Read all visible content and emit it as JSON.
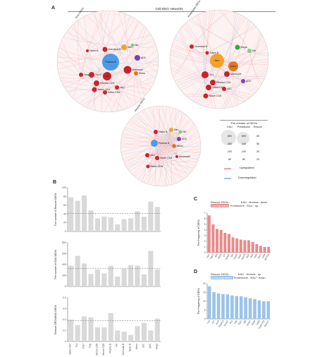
{
  "panelA": {
    "letter": "A",
    "title": "Cell-DEG networks",
    "networks": [
      {
        "key": "eau",
        "name": "EAU DEGs",
        "labels": [
          "Germinal B",
          "Naive B",
          "Plasma B",
          "Neu",
          "NK",
          "Mono",
          "Monocyte",
          "Mega",
          "pDC",
          "Effector CD4",
          "Naive CD4",
          "Naive CD8",
          "Th1",
          "Th17",
          "Treg",
          "cDC"
        ]
      },
      {
        "key": "pred",
        "name": "Prednisone DEGs",
        "labels": [
          "Germinal B",
          "Naive B",
          "Plasma B",
          "Neu",
          "NK",
          "Mono",
          "Monocyte",
          "Mega",
          "pDC",
          "Effector CD4",
          "Naive CD4",
          "Naive CD8",
          "Th1",
          "Th17",
          "Treg",
          "cDC"
        ]
      },
      {
        "key": "res",
        "name": "Rescue DEGs",
        "labels": [
          "Naive B",
          "Plasma B",
          "Neu",
          "NK",
          "Mono",
          "Monocyte",
          "pDC",
          "Naive CD4",
          "Naive CD8",
          "cDC"
        ]
      }
    ],
    "legend": {
      "title": "The number of DEGs",
      "columns": [
        "EAU",
        "Prednisone",
        "Rescue"
      ],
      "rows": [
        [
          "800",
          "600",
          "80"
        ],
        [
          "400",
          "440",
          "56"
        ],
        [
          "200",
          "240",
          "35"
        ],
        [
          "85",
          "80",
          "20"
        ]
      ],
      "up_label": "Upregulated",
      "down_label": "Downregulated",
      "up_color": "#f1a5a5",
      "down_color": "#9cc3e8"
    }
  },
  "panelB": {
    "letter": "B",
    "bar_color": "#d9d9d9",
    "categories": [
      "Naive CD4",
      "Th1",
      "Th17",
      "Treg",
      "Effector CD8",
      "Effector CD8",
      "Plasma B",
      "NK",
      "Germinal B",
      "Naive B",
      "Mono",
      "cDC",
      "pDC",
      "Mega"
    ],
    "chart_data": [
      {
        "type": "bar",
        "ylabel": "The number of Rescue DEGs",
        "ylim": [
          0,
          100
        ],
        "ticks": [
          "0",
          "20",
          "40",
          "60",
          "80",
          "100"
        ],
        "values": [
          78,
          70,
          82,
          48,
          30,
          34,
          32,
          16,
          28,
          30,
          46,
          34,
          68,
          56
        ],
        "ref": 41
      },
      {
        "type": "bar",
        "ylabel": "The number of EAU DEGs",
        "ylim": [
          0,
          800
        ],
        "ticks": [
          "0",
          "200",
          "400",
          "600",
          "800"
        ],
        "values": [
          380,
          560,
          420,
          230,
          310,
          240,
          380,
          180,
          320,
          390,
          380,
          220,
          650,
          310
        ],
        "ref": 325
      },
      {
        "type": "bar",
        "ylabel": "Rescue DEGs/EAU DEGs",
        "ylim": [
          0,
          0.4
        ],
        "ticks": [
          "0",
          "0.1",
          "0.2",
          "0.3",
          "0.4"
        ],
        "values": [
          0.2,
          0.15,
          0.23,
          0.22,
          0.13,
          0.13,
          0.26,
          0.1,
          0.09,
          0.06,
          0.14,
          0.17,
          0.1,
          0.21
        ],
        "ref": 0.19
      }
    ]
  },
  "panelC": {
    "letter": "C",
    "legend_line1": "Rescue DEGs :",
    "legend_line1b": "EAU - Normal : down",
    "legend_tag": "(Upregulated)",
    "legend_line2": "Prednisone - EAU : up",
    "ylabel": "The frequency of DEGs",
    "chart_data": {
      "type": "bar",
      "ylim": [
        0,
        7
      ],
      "ticks": [
        "0",
        "1",
        "2",
        "3",
        "4",
        "5",
        "6",
        "7"
      ],
      "values": [
        6.6,
        5.0,
        4.2,
        4.0,
        3.5,
        3.3,
        2.7,
        2.5,
        2.3,
        2.2,
        2.2,
        1.9,
        1.5,
        1.2,
        1.0,
        1.0
      ],
      "categories": [
        "Mx1",
        "Isg15",
        "Ifit3",
        "Ifi204",
        "Irf7",
        "Rsad2",
        "Ifit1",
        "Oasl2",
        "Stat1",
        "Usp18",
        "Bst2",
        "Ifi44",
        "Xaf1",
        "Zbp1",
        "Ly6a",
        "Ifi27l2a"
      ],
      "color": "#e98b8b"
    }
  },
  "panelD": {
    "letter": "D",
    "legend_line1": "Rescue DEGs :",
    "legend_line1b": "EAU - Normal : up",
    "legend_tag": "(Downregulated)",
    "legend_line2": "Prednisone - EAU : down",
    "ylabel": "The frequency of DEGs",
    "chart_data": {
      "type": "bar",
      "ylim": [
        0,
        20
      ],
      "ticks": [
        "0",
        "5",
        "10",
        "15",
        "20"
      ],
      "values": [
        18.5,
        15.2,
        14.4,
        14.1,
        13.9,
        13.3,
        13.0,
        12.8,
        12.2,
        11.6,
        11.3,
        10.5,
        10.0,
        10.0
      ],
      "categories": [
        "Fos",
        "Jun",
        "Junb",
        "Hspa1a",
        "Dusp1",
        "Ier2",
        "Klf2",
        "Egr1",
        "Klf6",
        "Nr4a1",
        "Zfp36",
        "Cd69",
        "Ppp1r15a",
        "Hexim1"
      ],
      "color": "#9cc3e8"
    }
  }
}
